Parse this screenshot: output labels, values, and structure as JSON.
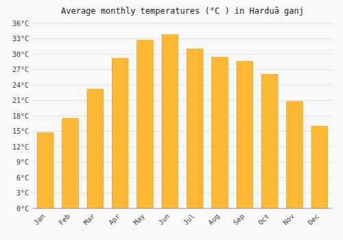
{
  "chart_data": {
    "type": "bar",
    "title": "Average monthly temperatures (°C ) in Harduā ganj",
    "categories": [
      "Jan",
      "Feb",
      "Mar",
      "Apr",
      "May",
      "Jun",
      "Jul",
      "Aug",
      "Sep",
      "Oct",
      "Nov",
      "Dec"
    ],
    "values": [
      14.7,
      17.5,
      23.2,
      29.2,
      32.7,
      33.8,
      31.0,
      29.4,
      28.6,
      26.1,
      20.8,
      16.0
    ],
    "color": "#FFB833",
    "ylim": [
      0,
      36
    ],
    "yticks": [
      {
        "value": 0,
        "label": "0°C"
      },
      {
        "value": 3,
        "label": "3°C"
      },
      {
        "value": 6,
        "label": "6°C"
      },
      {
        "value": 9,
        "label": "9°C"
      },
      {
        "value": 12,
        "label": "12°C"
      },
      {
        "value": 15,
        "label": "15°C"
      },
      {
        "value": 18,
        "label": "18°C"
      },
      {
        "value": 21,
        "label": "21°C"
      },
      {
        "value": 24,
        "label": "24°C"
      },
      {
        "value": 27,
        "label": "27°C"
      },
      {
        "value": 30,
        "label": "30°C"
      },
      {
        "value": 33,
        "label": "33°C"
      },
      {
        "value": 36,
        "label": "36°C"
      }
    ],
    "grid": true
  }
}
